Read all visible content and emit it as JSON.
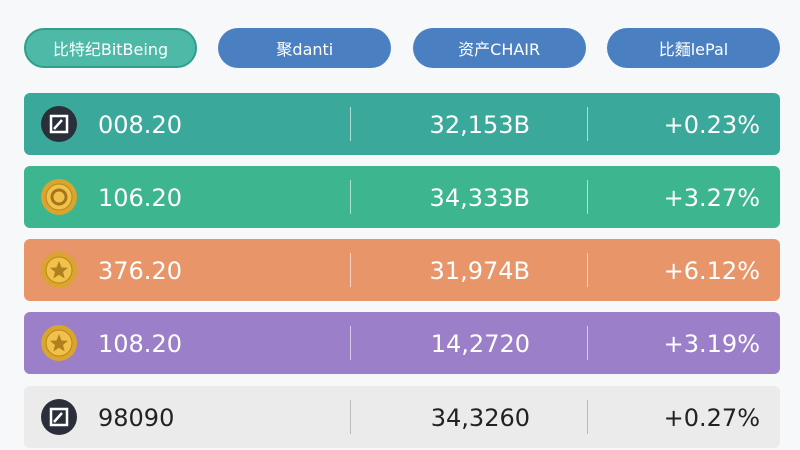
{
  "tabs": [
    "比特纪BitBeing",
    "聚danti",
    "资产CHAIR",
    "比麵lePal"
  ],
  "rows": [
    {
      "price": "008.20",
      "volume": "32,153B",
      "change": "+0.23%"
    },
    {
      "price": "106.20",
      "volume": "34,333B",
      "change": "+3.27%"
    },
    {
      "price": "376.20",
      "volume": "31,974B",
      "change": "+6.12%"
    },
    {
      "price": "108.20",
      "volume": "14,2720",
      "change": "+3.19%"
    },
    {
      "price": "98090",
      "volume": "34,3260",
      "change": "+0.27%"
    }
  ]
}
